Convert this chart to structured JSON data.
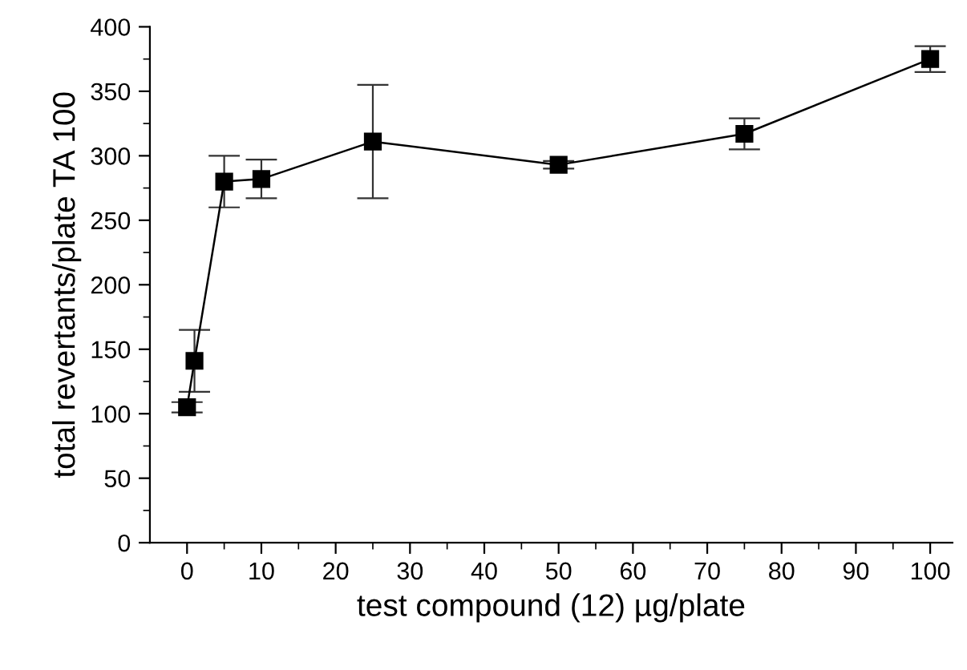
{
  "chart_data": {
    "type": "line",
    "xlabel": "test compound (12) µg/plate",
    "ylabel": "total revertants/plate TA 100",
    "x": [
      0,
      1,
      5,
      10,
      25,
      50,
      75,
      100
    ],
    "series": [
      {
        "color": "#000000",
        "values": [
          105,
          141,
          280,
          282,
          311,
          293,
          317,
          375
        ],
        "errors": [
          4,
          24,
          20,
          15,
          44,
          3,
          12,
          10
        ]
      }
    ],
    "marker": "square",
    "line_style": "solid",
    "grid": false,
    "legend": false,
    "xlim": [
      -5,
      103
    ],
    "ylim": [
      0,
      400
    ],
    "xticks": [
      0,
      {
        "value": 5,
        "label": null
      },
      10,
      {
        "value": 15,
        "label": null
      },
      20,
      {
        "value": 25,
        "label": null
      },
      30,
      {
        "value": 35,
        "label": null
      },
      40,
      {
        "value": 45,
        "label": null
      },
      50,
      {
        "value": 55,
        "label": null
      },
      60,
      {
        "value": 65,
        "label": null
      },
      70,
      {
        "value": 75,
        "label": null
      },
      80,
      {
        "value": 85,
        "label": null
      },
      90,
      {
        "value": 95,
        "label": null
      },
      100
    ],
    "yticks": [
      0,
      {
        "value": 25,
        "label": null
      },
      50,
      {
        "value": 75,
        "label": null
      },
      100,
      {
        "value": 125,
        "label": null
      },
      150,
      {
        "value": 175,
        "label": null
      },
      200,
      {
        "value": 225,
        "label": null
      },
      250,
      {
        "value": 275,
        "label": null
      },
      300,
      {
        "value": 325,
        "label": null
      },
      350,
      {
        "value": 375,
        "label": null
      },
      400
    ]
  }
}
